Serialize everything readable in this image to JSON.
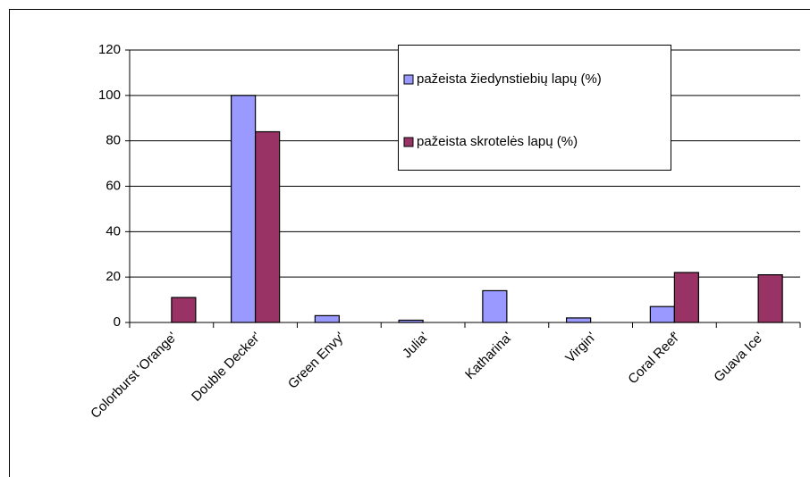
{
  "chart_data": {
    "type": "bar",
    "categories": [
      "Colorburst 'Orange'",
      "Double Decker'",
      "Green Envy'",
      "Julia'",
      "Katharina'",
      "Virgin'",
      "Coral Reef'",
      "Guava Ice'"
    ],
    "series": [
      {
        "name": "pažeista žiedynstiebių lapų (%)",
        "color": "#9999ff",
        "values": [
          0,
          100,
          3,
          1,
          14,
          2,
          7,
          0
        ]
      },
      {
        "name": "pažeista skrotelės lapų (%)",
        "color": "#993366",
        "values": [
          11,
          84,
          0,
          0,
          0,
          0,
          22,
          21
        ]
      }
    ],
    "ylim": [
      0,
      120
    ],
    "yticks": [
      0,
      20,
      40,
      60,
      80,
      100,
      120
    ],
    "grid": true,
    "legend": "upper right"
  }
}
